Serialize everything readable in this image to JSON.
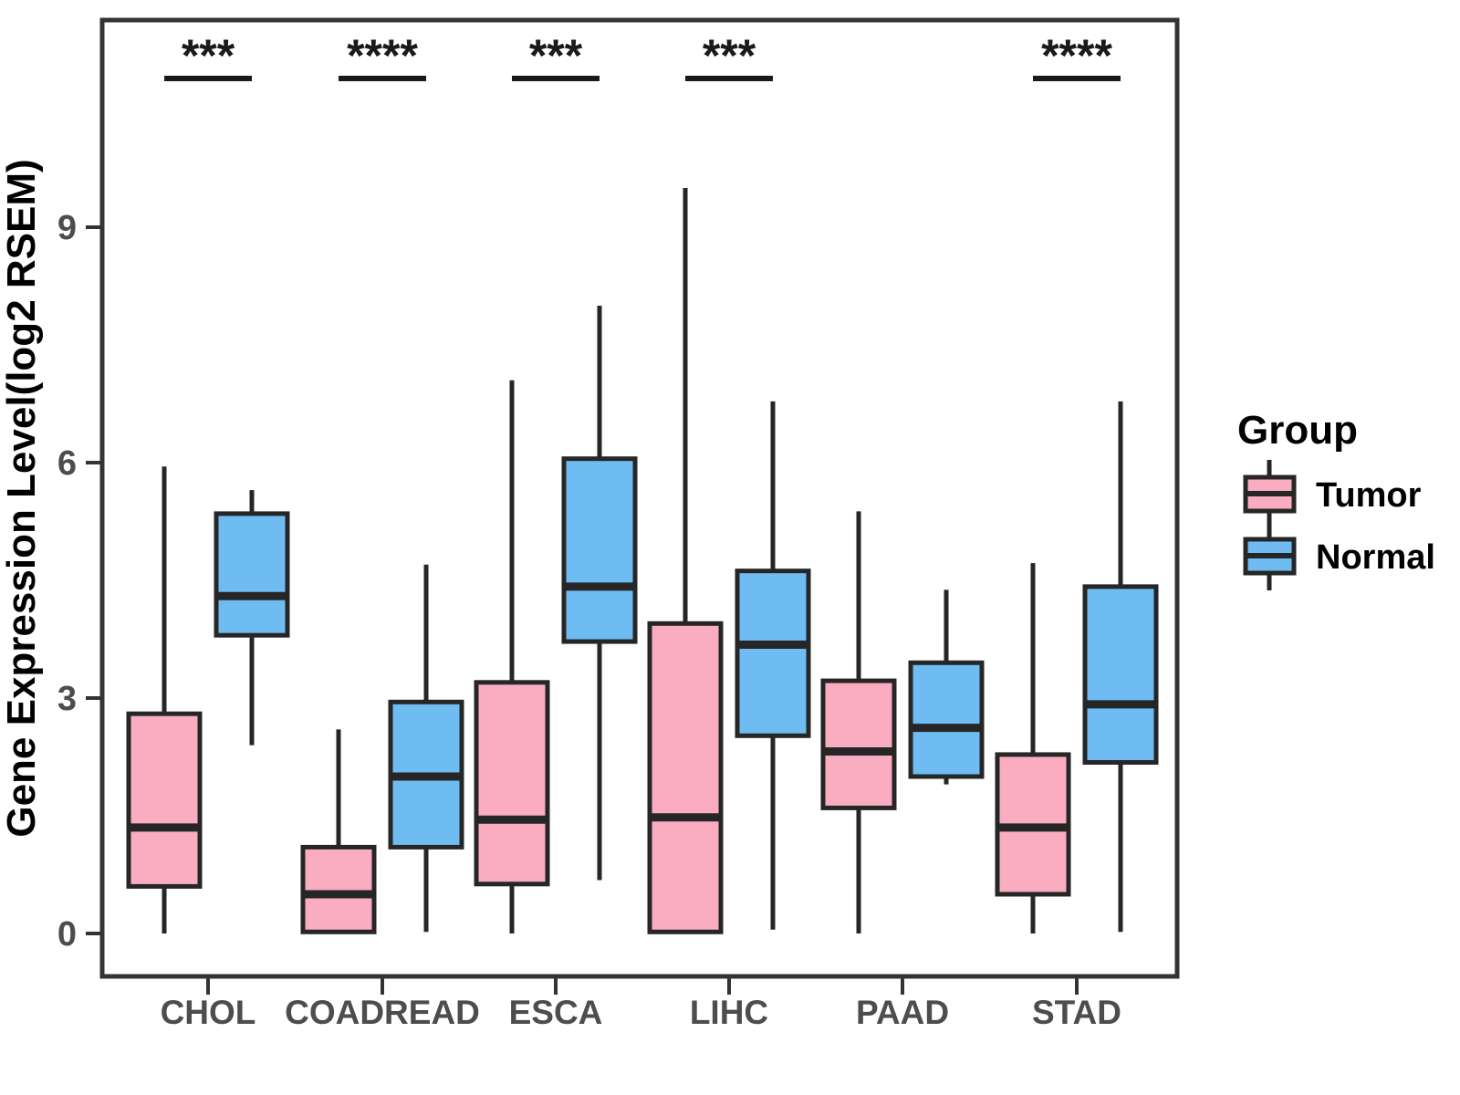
{
  "chart_data": {
    "type": "boxplot",
    "title": "",
    "xlabel": "",
    "ylabel": "Gene Expression Level(log2 RSEM)",
    "categories": [
      "CHOL",
      "COADREAD",
      "ESCA",
      "LIHC",
      "PAAD",
      "STAD"
    ],
    "yticks": [
      0,
      3,
      6,
      9
    ],
    "ytick_labels": [
      "0",
      "3",
      "6",
      "9"
    ],
    "ylim": [
      -0.55,
      11.6
    ],
    "grid": "off",
    "legend_position": "right",
    "legend_title": "Group",
    "groups": [
      {
        "name": "Tumor",
        "color": "#FAADC1"
      },
      {
        "name": "Normal",
        "color": "#6FBCF3"
      }
    ],
    "series": [
      {
        "category": "CHOL",
        "group": "Tumor",
        "min": 0,
        "q1": 0.6,
        "median": 1.35,
        "q3": 2.8,
        "max": 5.95
      },
      {
        "category": "CHOL",
        "group": "Normal",
        "min": 2.4,
        "q1": 3.8,
        "median": 4.3,
        "q3": 5.35,
        "max": 5.65
      },
      {
        "category": "COADREAD",
        "group": "Tumor",
        "min": 0,
        "q1": 0.02,
        "median": 0.5,
        "q3": 1.1,
        "max": 2.6
      },
      {
        "category": "COADREAD",
        "group": "Normal",
        "min": 0.02,
        "q1": 1.1,
        "median": 2.0,
        "q3": 2.95,
        "max": 4.7
      },
      {
        "category": "ESCA",
        "group": "Tumor",
        "min": 0,
        "q1": 0.63,
        "median": 1.45,
        "q3": 3.2,
        "max": 7.05
      },
      {
        "category": "ESCA",
        "group": "Normal",
        "min": 0.68,
        "q1": 3.72,
        "median": 4.42,
        "q3": 6.05,
        "max": 8.0
      },
      {
        "category": "LIHC",
        "group": "Tumor",
        "min": 0,
        "q1": 0.02,
        "median": 1.48,
        "q3": 3.95,
        "max": 9.5
      },
      {
        "category": "LIHC",
        "group": "Normal",
        "min": 0.05,
        "q1": 2.52,
        "median": 3.68,
        "q3": 4.62,
        "max": 6.78
      },
      {
        "category": "PAAD",
        "group": "Tumor",
        "min": 0,
        "q1": 1.6,
        "median": 2.32,
        "q3": 3.22,
        "max": 5.38
      },
      {
        "category": "PAAD",
        "group": "Normal",
        "min": 1.9,
        "q1": 2.0,
        "median": 2.62,
        "q3": 3.45,
        "max": 4.38
      },
      {
        "category": "STAD",
        "group": "Tumor",
        "min": 0,
        "q1": 0.5,
        "median": 1.35,
        "q3": 2.28,
        "max": 4.72
      },
      {
        "category": "STAD",
        "group": "Normal",
        "min": 0.02,
        "q1": 2.18,
        "median": 2.92,
        "q3": 4.42,
        "max": 6.78
      }
    ],
    "significance": [
      {
        "category": "CHOL",
        "label": "***"
      },
      {
        "category": "COADREAD",
        "label": "****"
      },
      {
        "category": "ESCA",
        "label": "***"
      },
      {
        "category": "LIHC",
        "label": "***"
      },
      {
        "category": "STAD",
        "label": "****"
      }
    ],
    "colors": {
      "box_stroke": "#262626",
      "axis_text": "#4D4D4D",
      "axis_line": "#333333",
      "annotation": "#1A1A1A",
      "background": "#FFFFFF"
    }
  }
}
